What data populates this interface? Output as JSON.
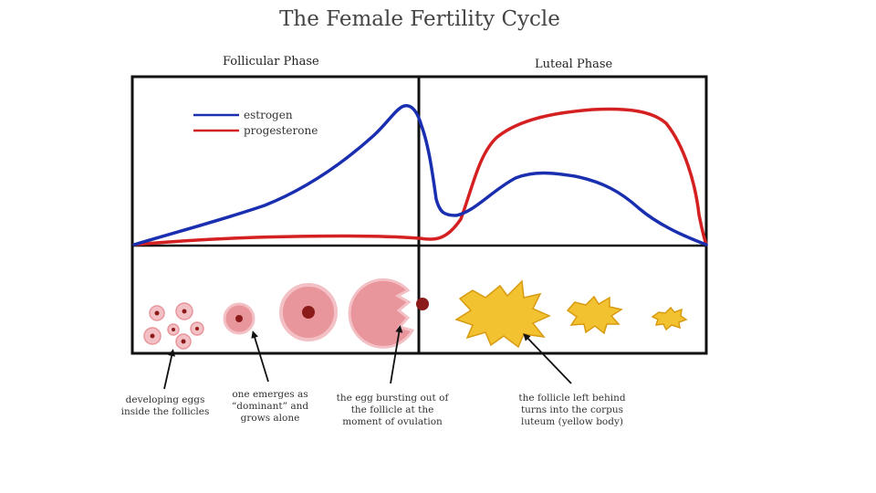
{
  "title": "The Female Fertility Cycle",
  "phases": {
    "follicular": "Follicular Phase",
    "luteal": "Luteal Phase"
  },
  "legend": {
    "estrogen": "estrogen",
    "progesterone": "progesterone"
  },
  "colors": {
    "estrogen": "#1a2fb0",
    "progesterone": "#d42020",
    "follicle_light": "#f3c1c5",
    "follicle_mid": "#e8959c",
    "egg": "#8b1a1a",
    "corpus_luteum": "#f2c230",
    "corpus_luteum_stroke": "#d89a10",
    "frame": "#111111"
  },
  "captions": [
    "developing eggs\ninside the follicles",
    "one emerges as\n“dominant” and\ngrows alone",
    "the egg bursting out of\nthe follicle at the\nmoment of ovulation",
    "the follicle left behind\nturns into the corpus\nluteum (yellow body)"
  ]
}
